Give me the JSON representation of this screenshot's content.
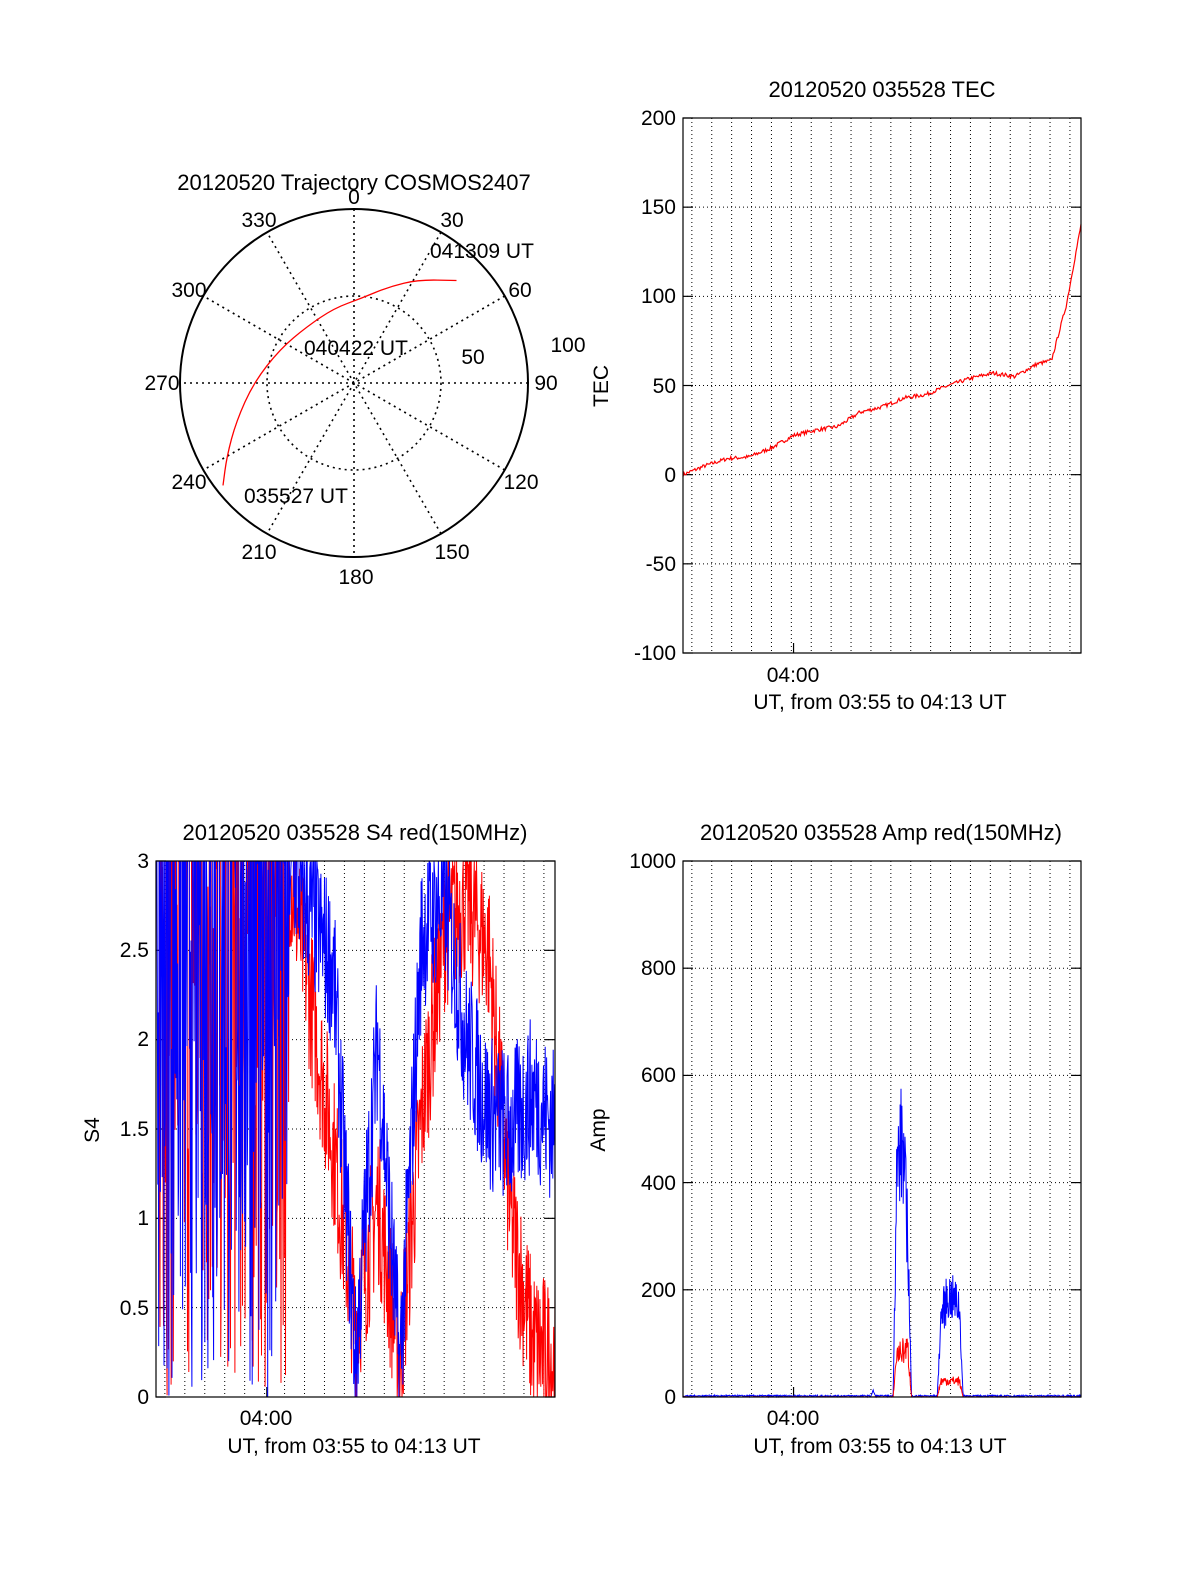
{
  "colors": {
    "red": "#ff0000",
    "blue": "#0000ff",
    "axis": "#000000",
    "grid": "#000000"
  },
  "chart_data": [
    {
      "type": "polar-trajectory",
      "title": "20120520 Trajectory COSMOS2407",
      "azimuth_labels": [
        "0",
        "30",
        "60",
        "90",
        "120",
        "150",
        "180",
        "210",
        "240",
        "270",
        "300",
        "330"
      ],
      "elevation_labels": [
        "50",
        "100"
      ],
      "elevation_rings": [
        50,
        100
      ],
      "annotations": [
        {
          "text": "041309 UT",
          "az": 45,
          "zenith": 75
        },
        {
          "text": "040422 UT",
          "az": 320,
          "zenith": 35
        },
        {
          "text": "035527 UT",
          "az": 232,
          "zenith": 86
        }
      ],
      "track": {
        "color": "#ff0000",
        "points": [
          [
            232,
            86
          ],
          [
            240,
            76
          ],
          [
            252,
            64
          ],
          [
            270,
            52
          ],
          [
            295,
            42
          ],
          [
            320,
            38
          ],
          [
            345,
            40
          ],
          [
            5,
            44
          ],
          [
            20,
            53
          ],
          [
            32,
            63
          ],
          [
            45,
            75
          ]
        ]
      }
    },
    {
      "type": "line",
      "title": "20120520 035528 TEC",
      "xlabel": "UT, from 03:55 to 04:13 UT",
      "ylabel": "TEC",
      "xlim": [
        "03:55",
        "04:13"
      ],
      "ylim": [
        -100,
        200
      ],
      "xticks": [
        {
          "at": "04:00",
          "label": "04:00"
        }
      ],
      "yticks": [
        -100,
        -50,
        0,
        50,
        100,
        150,
        200
      ],
      "grid": true,
      "series": [
        {
          "color": "#ff0000",
          "x": [
            "03:55:00",
            "03:56:00",
            "03:57:00",
            "03:58:00",
            "03:59:00",
            "04:00:00",
            "04:01:00",
            "04:02:00",
            "04:03:00",
            "04:04:00",
            "04:05:00",
            "04:06:00",
            "04:07:00",
            "04:08:00",
            "04:09:00",
            "04:10:00",
            "04:11:00",
            "04:11:40",
            "04:12:20",
            "04:13:00"
          ],
          "y": [
            0,
            5,
            9,
            10,
            15,
            22,
            25,
            27,
            35,
            38,
            43,
            45,
            50,
            54,
            57,
            55,
            62,
            64,
            95,
            140
          ]
        }
      ]
    },
    {
      "type": "line",
      "title": "20120520 035528 S4 red(150MHz)",
      "xlabel": "UT, from 03:55 to 04:13 UT",
      "ylabel": "S4",
      "xlim": [
        "03:55",
        "04:13"
      ],
      "ylim": [
        0,
        3
      ],
      "xticks": [
        {
          "at": "04:00",
          "label": "04:00"
        }
      ],
      "yticks": [
        "0",
        "0.5",
        "1",
        "1.5",
        "2",
        "2.5",
        "3"
      ],
      "grid": true,
      "series": [
        {
          "color": "#ff0000",
          "x": [
            "03:55",
            "03:58",
            "04:01",
            "04:03",
            "04:04",
            "04:05",
            "04:06",
            "04:07",
            "04:08",
            "04:09",
            "04:10",
            "04:11",
            "04:12",
            "04:13"
          ],
          "y": [
            3.0,
            3.0,
            3.0,
            1.4,
            0.4,
            1.1,
            0.2,
            1.6,
            2.6,
            2.8,
            2.5,
            1.0,
            0.3,
            0.2
          ]
        },
        {
          "color": "#0000ff",
          "x": [
            "03:55",
            "03:58",
            "04:01",
            "04:03",
            "04:04",
            "04:05",
            "04:06",
            "04:07",
            "04:08",
            "04:09",
            "04:10",
            "04:11",
            "04:12",
            "04:13"
          ],
          "y": [
            3.0,
            3.0,
            3.0,
            2.4,
            0.2,
            2.0,
            0.15,
            2.6,
            2.8,
            2.0,
            1.6,
            1.5,
            1.7,
            1.5
          ]
        }
      ]
    },
    {
      "type": "line",
      "title": "20120520 035528 Amp red(150MHz)",
      "xlabel": "UT, from 03:55 to 04:13 UT",
      "ylabel": "Amp",
      "xlim": [
        "03:55",
        "04:13"
      ],
      "ylim": [
        0,
        1000
      ],
      "xticks": [
        {
          "at": "04:00",
          "label": "04:00"
        }
      ],
      "yticks": [
        0,
        200,
        400,
        600,
        800,
        1000
      ],
      "grid": true,
      "series": [
        {
          "color": "#ff0000",
          "x": [
            "03:55",
            "04:04:00",
            "04:04:30",
            "04:04:40",
            "04:05:10",
            "04:05:20",
            "04:06:30",
            "04:06:40",
            "04:07:30",
            "04:07:40",
            "04:13"
          ],
          "y": [
            0,
            0,
            0,
            80,
            90,
            0,
            0,
            30,
            30,
            0,
            0
          ]
        },
        {
          "color": "#0000ff",
          "x": [
            "03:55",
            "04:03:30",
            "04:03:36",
            "04:03:42",
            "04:04:30",
            "04:04:40",
            "04:04:55",
            "04:05:10",
            "04:05:20",
            "04:06:30",
            "04:06:40",
            "04:07:00",
            "04:07:30",
            "04:07:40",
            "04:13"
          ],
          "y": [
            2,
            2,
            12,
            2,
            2,
            420,
            480,
            300,
            2,
            2,
            150,
            190,
            170,
            2,
            2
          ]
        }
      ]
    }
  ]
}
